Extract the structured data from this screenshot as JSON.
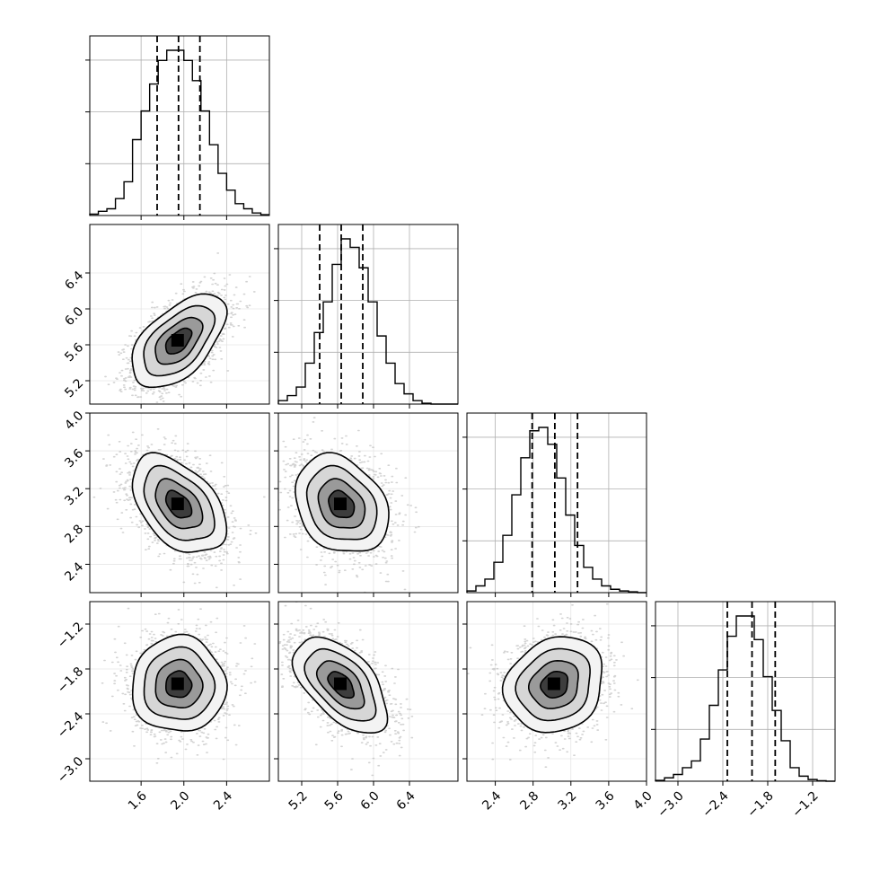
{
  "chart_data": {
    "type": "corner",
    "parameters": 4,
    "panels": {
      "hist": [
        {
          "param": 0,
          "range": [
            1.12,
            2.8
          ],
          "ticks": [
            1.6,
            2.0,
            2.4
          ],
          "tick_labels": [
            "1.6",
            "2.0",
            "2.4"
          ],
          "quantiles": [
            1.75,
            1.95,
            2.15
          ],
          "bins_x": [
            1.12,
            1.2,
            1.28,
            1.36,
            1.44,
            1.52,
            1.6,
            1.68,
            1.76,
            1.84,
            1.92,
            2.0,
            2.08,
            2.16,
            2.24,
            2.32,
            2.4,
            2.48,
            2.56,
            2.64,
            2.72,
            2.8
          ],
          "counts": [
            0.008,
            0.025,
            0.04,
            0.1,
            0.2,
            0.45,
            0.62,
            0.78,
            0.92,
            0.98,
            0.98,
            0.92,
            0.8,
            0.62,
            0.42,
            0.25,
            0.15,
            0.07,
            0.04,
            0.015,
            0.005
          ]
        },
        {
          "param": 1,
          "range": [
            4.94,
            6.94
          ],
          "ticks": [
            5.2,
            5.6,
            6.0,
            6.4
          ],
          "tick_labels": [
            "5.2",
            "5.6",
            "6.0",
            "6.4"
          ],
          "quantiles": [
            5.4,
            5.64,
            5.88
          ],
          "bins_x": [
            4.94,
            5.04,
            5.14,
            5.24,
            5.34,
            5.44,
            5.54,
            5.64,
            5.74,
            5.84,
            5.94,
            6.04,
            6.14,
            6.24,
            6.34,
            6.44,
            6.54,
            6.64,
            6.74,
            6.84,
            6.94
          ],
          "counts": [
            0.02,
            0.05,
            0.1,
            0.24,
            0.42,
            0.6,
            0.82,
            0.97,
            0.92,
            0.8,
            0.6,
            0.4,
            0.24,
            0.12,
            0.06,
            0.02,
            0.005,
            0.0,
            0.0,
            0.0
          ]
        },
        {
          "param": 2,
          "range": [
            2.1,
            4.0
          ],
          "ticks": [
            2.4,
            2.8,
            3.2,
            3.6,
            4.0
          ],
          "tick_labels": [
            "2.4",
            "2.8",
            "3.2",
            "3.6",
            "4.0"
          ],
          "quantiles": [
            2.79,
            3.03,
            3.27
          ],
          "bins_x": [
            2.1,
            2.195,
            2.29,
            2.385,
            2.48,
            2.575,
            2.67,
            2.765,
            2.86,
            2.955,
            3.05,
            3.145,
            3.24,
            3.335,
            3.43,
            3.525,
            3.62,
            3.715,
            3.81,
            3.905,
            4.0
          ],
          "counts": [
            0.01,
            0.04,
            0.08,
            0.18,
            0.34,
            0.58,
            0.8,
            0.96,
            0.98,
            0.88,
            0.68,
            0.46,
            0.28,
            0.15,
            0.08,
            0.04,
            0.02,
            0.01,
            0.005,
            0.0
          ]
        },
        {
          "param": 3,
          "range": [
            -3.3,
            -0.9
          ],
          "ticks": [
            -3.0,
            -2.4,
            -1.8,
            -1.2
          ],
          "tick_labels": [
            "−3.0",
            "−2.4",
            "−1.8",
            "−1.2"
          ],
          "quantiles": [
            -2.34,
            -2.01,
            -1.7
          ],
          "bins_x": [
            -3.3,
            -3.18,
            -3.06,
            -2.94,
            -2.82,
            -2.7,
            -2.58,
            -2.46,
            -2.34,
            -2.22,
            -2.1,
            -1.98,
            -1.86,
            -1.74,
            -1.62,
            -1.5,
            -1.38,
            -1.26,
            -1.14,
            -1.02,
            -0.9
          ],
          "counts": [
            0.005,
            0.02,
            0.04,
            0.08,
            0.12,
            0.25,
            0.45,
            0.66,
            0.86,
            0.98,
            0.98,
            0.84,
            0.62,
            0.42,
            0.24,
            0.08,
            0.03,
            0.01,
            0.003,
            0.0
          ]
        }
      ],
      "scatter": [
        {
          "x_param": 0,
          "y_param": 1,
          "correlation": 0.55
        },
        {
          "x_param": 0,
          "y_param": 2,
          "correlation": -0.45
        },
        {
          "x_param": 1,
          "y_param": 2,
          "correlation": -0.25
        },
        {
          "x_param": 0,
          "y_param": 3,
          "correlation": 0.0
        },
        {
          "x_param": 1,
          "y_param": 3,
          "correlation": -0.55
        },
        {
          "x_param": 2,
          "y_param": 3,
          "correlation": 0.15
        }
      ]
    },
    "means": [
      1.95,
      5.64,
      3.03,
      -2.01
    ],
    "sigmas": [
      0.22,
      0.26,
      0.26,
      0.32
    ],
    "grid": true,
    "contour_levels": [
      0.12,
      0.3,
      0.55,
      0.85
    ],
    "colors": {
      "line": "#000000",
      "points": "#b0b0b0",
      "grid": "#b0b0b0"
    }
  }
}
